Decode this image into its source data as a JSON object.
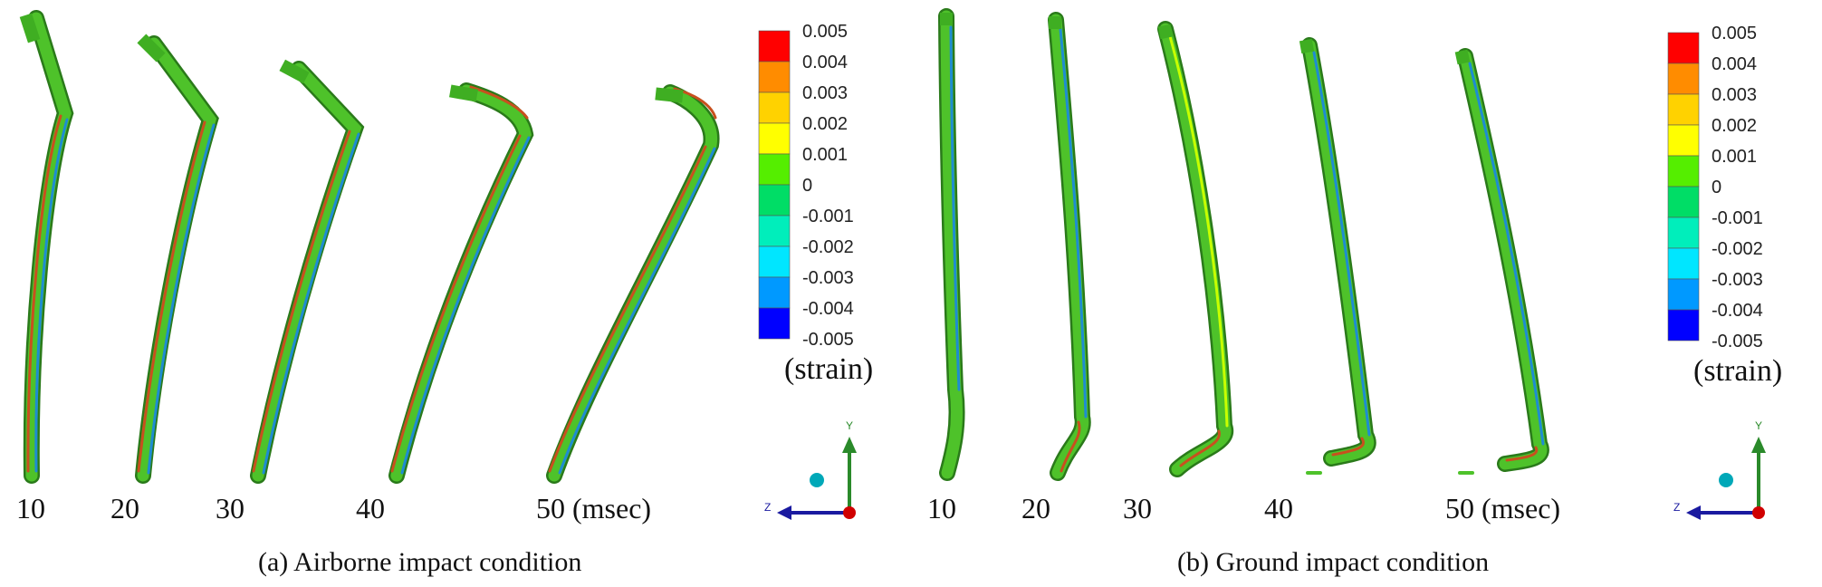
{
  "panels": [
    {
      "id": "a",
      "caption": "(a) Airborne impact condition",
      "time_labels": [
        "10",
        "20",
        "30",
        "40",
        "50 (msec)"
      ],
      "legend": {
        "ticks": [
          "0.005",
          "0.004",
          "0.003",
          "0.002",
          "0.001",
          "0",
          "-0.001",
          "-0.002",
          "-0.003",
          "-0.004",
          "-0.005"
        ],
        "unit": "(strain)"
      },
      "axes": {
        "y": "Y",
        "z": "Z"
      }
    },
    {
      "id": "b",
      "caption": "(b) Ground impact condition",
      "time_labels": [
        "10",
        "20",
        "30",
        "40",
        "50 (msec)"
      ],
      "legend": {
        "ticks": [
          "0.005",
          "0.004",
          "0.003",
          "0.002",
          "0.001",
          "0",
          "-0.001",
          "-0.002",
          "-0.003",
          "-0.004",
          "-0.005"
        ],
        "unit": "(strain)"
      },
      "axes": {
        "y": "Y",
        "z": "Z"
      }
    }
  ],
  "colors": {
    "scale": [
      "#ff0000",
      "#ff8c00",
      "#ffd200",
      "#ffff00",
      "#c8ff00",
      "#55ee00",
      "#00dd66",
      "#00eebb",
      "#00e6ff",
      "#0099ff",
      "#0000ff"
    ],
    "beam_main": "#4ec22a",
    "beam_red": "#c8501e",
    "beam_blue": "#1e8cd2",
    "beam_edge": "#2a7a1a",
    "axis_y": "#2a8a2a",
    "axis_z": "#1a1aa0",
    "origin": "#d00000",
    "sphere": "#00a8b8"
  }
}
